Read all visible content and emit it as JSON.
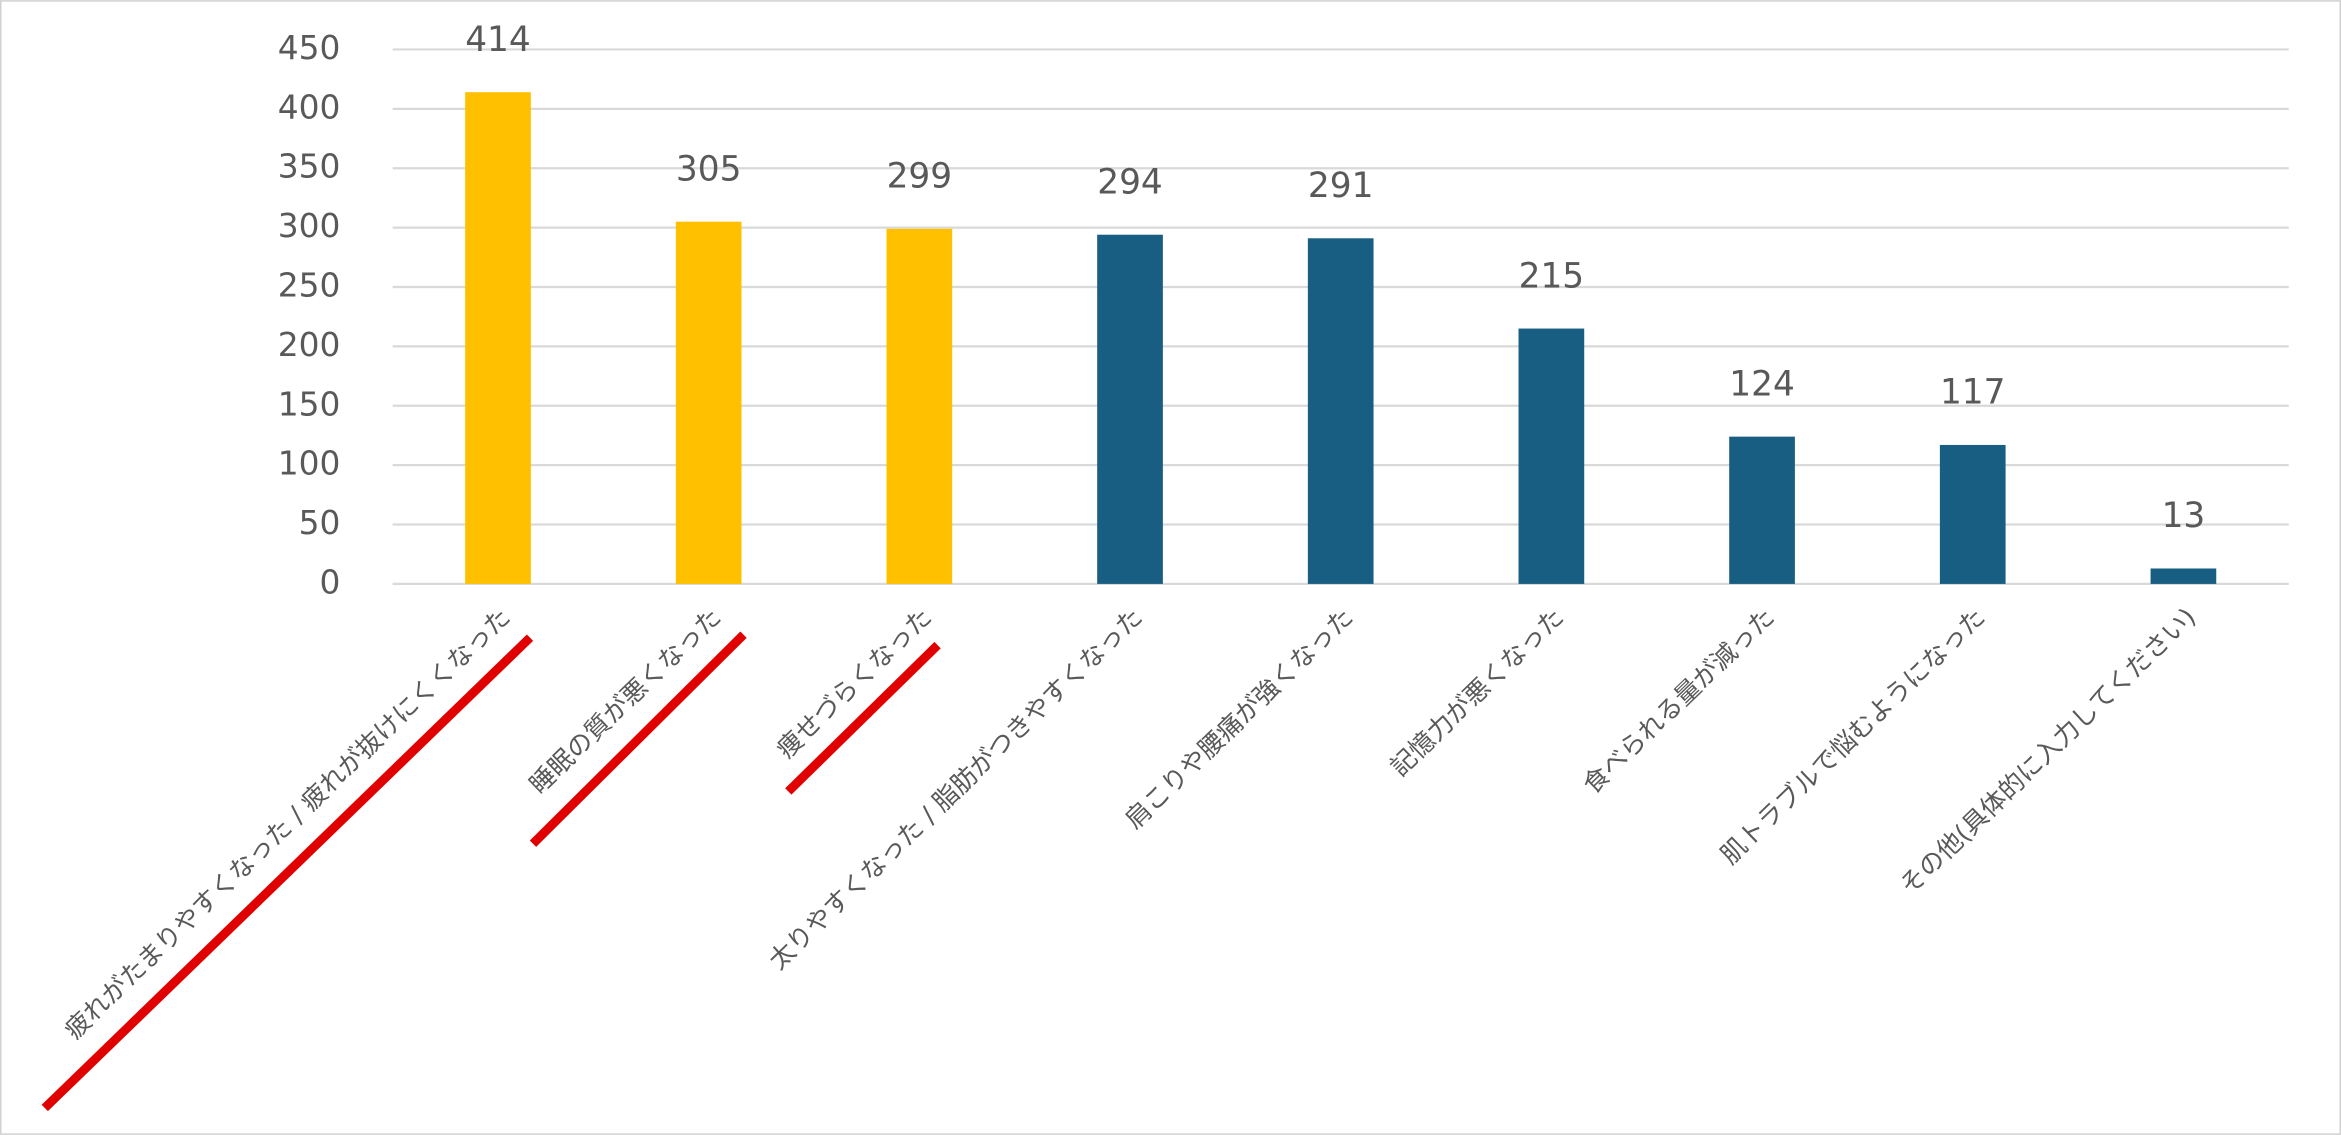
{
  "chart_data": {
    "type": "bar",
    "categories": [
      "疲れがたまりやすくなった / 疲れが抜けにくくなった",
      "睡眠の質が悪くなった",
      "痩せづらくなった",
      "太りやすくなった / 脂肪がつきやすくなった",
      "肩こりや腰痛が強くなった",
      "記憶力が悪くなった",
      "食べられる量が減った",
      "肌トラブルで悩むようになった",
      "その他(具体的に入力してください)"
    ],
    "values": [
      414,
      305,
      299,
      294,
      291,
      215,
      124,
      117,
      13
    ],
    "colors": [
      "#FFC000",
      "#FFC000",
      "#FFC000",
      "#175E82",
      "#175E82",
      "#175E82",
      "#175E82",
      "#175E82",
      "#175E82"
    ],
    "ylim": [
      0,
      450
    ],
    "yticks": [
      0,
      50,
      100,
      150,
      200,
      250,
      300,
      350,
      400,
      450
    ],
    "grid": true
  }
}
